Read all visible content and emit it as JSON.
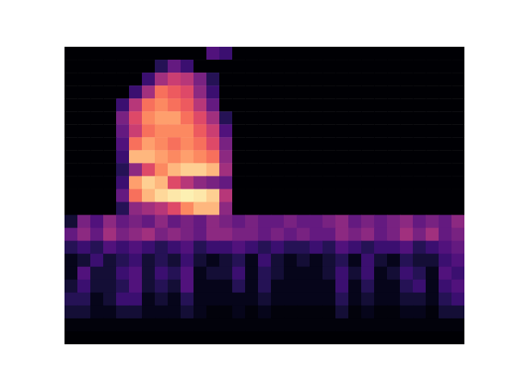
{
  "chart_data": {
    "type": "heatmap",
    "color": "magma",
    "tick_labels": false,
    "zlim": [
      0,
      1
    ],
    "cells": [
      [
        0,
        0,
        0,
        0,
        0,
        0,
        0,
        0,
        0,
        0,
        0,
        0.25,
        0.2,
        0,
        0,
        0,
        0,
        0,
        0,
        0,
        0,
        0,
        0,
        0,
        0,
        0,
        0,
        0,
        0,
        0,
        0
      ],
      [
        0,
        0,
        0,
        0,
        0,
        0,
        0,
        0.15,
        0.3,
        0.2,
        0,
        0,
        0,
        0,
        0,
        0,
        0,
        0,
        0,
        0,
        0,
        0,
        0,
        0,
        0,
        0,
        0,
        0,
        0,
        0,
        0
      ],
      [
        0,
        0,
        0,
        0,
        0,
        0,
        0.2,
        0.45,
        0.55,
        0.5,
        0.35,
        0.15,
        0,
        0,
        0,
        0,
        0,
        0,
        0,
        0,
        0,
        0,
        0,
        0,
        0,
        0,
        0,
        0,
        0,
        0,
        0
      ],
      [
        0,
        0,
        0,
        0,
        0,
        0.2,
        0.45,
        0.7,
        0.65,
        0.6,
        0.4,
        0.2,
        0,
        0,
        0,
        0,
        0,
        0,
        0,
        0,
        0,
        0,
        0,
        0,
        0,
        0,
        0,
        0,
        0,
        0,
        0
      ],
      [
        0,
        0,
        0,
        0,
        0.2,
        0.5,
        0.7,
        0.75,
        0.7,
        0.65,
        0.5,
        0.3,
        0,
        0,
        0,
        0,
        0,
        0,
        0,
        0,
        0,
        0,
        0,
        0,
        0,
        0,
        0,
        0,
        0,
        0,
        0
      ],
      [
        0,
        0,
        0,
        0,
        0.35,
        0.6,
        0.75,
        0.8,
        0.8,
        0.7,
        0.6,
        0.45,
        0.15,
        0,
        0,
        0,
        0,
        0,
        0,
        0,
        0,
        0,
        0,
        0,
        0,
        0,
        0,
        0,
        0,
        0,
        0
      ],
      [
        0,
        0,
        0,
        0,
        0.3,
        0.55,
        0.7,
        0.75,
        0.75,
        0.75,
        0.65,
        0.55,
        0.25,
        0,
        0,
        0,
        0,
        0,
        0,
        0,
        0,
        0,
        0,
        0,
        0,
        0,
        0,
        0,
        0,
        0,
        0
      ],
      [
        0,
        0,
        0,
        0,
        0.25,
        0.7,
        0.8,
        0.75,
        0.7,
        0.75,
        0.7,
        0.6,
        0.35,
        0,
        0,
        0,
        0,
        0,
        0,
        0,
        0,
        0,
        0,
        0,
        0,
        0,
        0,
        0,
        0,
        0,
        0
      ],
      [
        0,
        0,
        0,
        0,
        0.2,
        0.85,
        0.85,
        0.8,
        0.75,
        0.8,
        0.75,
        0.7,
        0.4,
        0,
        0,
        0,
        0,
        0,
        0,
        0,
        0,
        0,
        0,
        0,
        0,
        0,
        0,
        0,
        0,
        0,
        0
      ],
      [
        0,
        0,
        0,
        0,
        0.15,
        0.4,
        0.6,
        0.75,
        0.85,
        0.9,
        0.9,
        0.85,
        0.45,
        0,
        0,
        0,
        0,
        0,
        0,
        0,
        0,
        0,
        0,
        0,
        0,
        0,
        0,
        0,
        0,
        0,
        0
      ],
      [
        0,
        0,
        0,
        0,
        0.2,
        0.8,
        0.9,
        0.85,
        0.6,
        0.5,
        0.4,
        0.35,
        0.3,
        0,
        0,
        0,
        0,
        0,
        0,
        0,
        0,
        0,
        0,
        0,
        0,
        0,
        0,
        0,
        0,
        0,
        0
      ],
      [
        0,
        0,
        0,
        0,
        0.3,
        0.7,
        0.85,
        0.92,
        0.95,
        0.97,
        0.95,
        0.9,
        0.5,
        0,
        0,
        0,
        0,
        0,
        0,
        0,
        0,
        0,
        0,
        0,
        0,
        0,
        0,
        0,
        0,
        0,
        0
      ],
      [
        0,
        0,
        0,
        0,
        0.15,
        0.4,
        0.45,
        0.5,
        0.6,
        0.75,
        0.85,
        0.85,
        0.4,
        0,
        0,
        0,
        0,
        0,
        0,
        0,
        0,
        0,
        0,
        0,
        0,
        0,
        0,
        0,
        0,
        0,
        0
      ],
      [
        0.1,
        0.35,
        0.25,
        0.4,
        0.3,
        0.35,
        0.3,
        0.4,
        0.3,
        0.35,
        0.3,
        0.4,
        0.35,
        0.3,
        0.35,
        0.3,
        0.3,
        0.35,
        0.3,
        0.3,
        0.35,
        0.4,
        0.3,
        0.35,
        0.3,
        0.35,
        0.4,
        0.3,
        0.35,
        0.3,
        0.4
      ],
      [
        0.3,
        0.4,
        0.3,
        0.45,
        0.35,
        0.4,
        0.45,
        0.35,
        0.4,
        0.35,
        0.3,
        0.4,
        0.4,
        0.35,
        0.35,
        0.3,
        0.35,
        0.3,
        0.35,
        0.3,
        0.3,
        0.4,
        0.35,
        0.4,
        0.3,
        0.35,
        0.45,
        0.35,
        0.45,
        0.3,
        0.35
      ],
      [
        0.15,
        0.2,
        0.15,
        0.25,
        0.2,
        0.25,
        0.2,
        0.15,
        0.2,
        0.25,
        0.15,
        0.2,
        0.2,
        0.25,
        0.2,
        0.15,
        0.2,
        0.15,
        0.15,
        0.2,
        0.15,
        0.25,
        0.2,
        0.15,
        0.2,
        0.2,
        0.25,
        0.15,
        0.2,
        0.25,
        0.3
      ],
      [
        0.05,
        0.1,
        0.2,
        0.1,
        0.15,
        0.2,
        0.1,
        0.15,
        0.1,
        0.2,
        0.1,
        0.05,
        0.1,
        0.15,
        0.05,
        0.2,
        0.1,
        0.05,
        0.1,
        0.05,
        0.1,
        0.15,
        0.05,
        0.2,
        0.1,
        0.05,
        0.15,
        0.1,
        0.1,
        0.2,
        0.25
      ],
      [
        0.05,
        0.25,
        0.1,
        0.1,
        0.2,
        0.25,
        0.1,
        0.2,
        0.15,
        0.25,
        0.05,
        0.1,
        0.1,
        0.2,
        0.05,
        0.15,
        0.1,
        0.05,
        0.05,
        0.05,
        0.1,
        0.2,
        0.1,
        0.2,
        0.05,
        0.1,
        0.2,
        0.15,
        0.05,
        0.25,
        0.2
      ],
      [
        0.1,
        0.2,
        0.1,
        0.1,
        0.15,
        0.25,
        0.1,
        0.15,
        0.1,
        0.25,
        0.05,
        0.05,
        0.05,
        0.15,
        0.05,
        0.15,
        0.05,
        0.05,
        0.05,
        0.05,
        0.05,
        0.2,
        0.05,
        0.15,
        0.05,
        0.05,
        0.15,
        0.2,
        0.05,
        0.2,
        0.25
      ],
      [
        0.15,
        0.15,
        0.05,
        0.1,
        0.2,
        0.2,
        0.05,
        0.1,
        0.05,
        0.15,
        0.05,
        0.05,
        0.05,
        0.05,
        0.05,
        0.1,
        0.05,
        0.05,
        0.05,
        0.05,
        0.05,
        0.15,
        0.05,
        0.1,
        0.05,
        0.05,
        0.1,
        0.1,
        0.05,
        0.15,
        0.2
      ],
      [
        0.1,
        0.1,
        0.05,
        0.05,
        0.1,
        0.1,
        0.05,
        0.05,
        0.05,
        0.1,
        0.05,
        0.02,
        0.02,
        0.05,
        0.02,
        0.05,
        0.02,
        0.02,
        0.02,
        0.02,
        0.02,
        0.1,
        0.02,
        0.05,
        0.02,
        0.02,
        0.05,
        0.05,
        0.02,
        0.1,
        0.1
      ],
      [
        0.02,
        0.02,
        0.02,
        0.02,
        0.02,
        0.02,
        0.02,
        0.02,
        0.02,
        0.02,
        0.02,
        0.02,
        0.02,
        0.02,
        0.02,
        0.02,
        0.02,
        0.02,
        0.02,
        0.02,
        0.02,
        0.02,
        0.02,
        0.02,
        0.02,
        0.02,
        0.02,
        0.02,
        0.02,
        0.02,
        0.02
      ],
      [
        0,
        0,
        0,
        0,
        0,
        0,
        0,
        0,
        0,
        0,
        0,
        0,
        0,
        0,
        0,
        0,
        0,
        0,
        0,
        0,
        0,
        0,
        0,
        0,
        0,
        0,
        0,
        0,
        0,
        0,
        0
      ]
    ]
  }
}
